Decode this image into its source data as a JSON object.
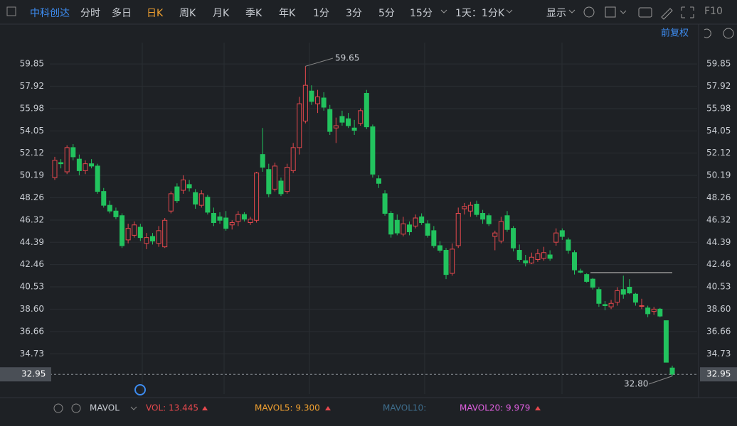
{
  "toolbar": {
    "stock": "中科创达",
    "periods": [
      "分时",
      "多日",
      "日K",
      "周K",
      "月K",
      "季K",
      "年K",
      "1分",
      "3分",
      "5分",
      "15分"
    ],
    "range": "1天：1分K",
    "display": "显示",
    "f10": "F10",
    "adjust": "前复权"
  },
  "indicator": {
    "name": "MAVOL",
    "vol": "VOL: 13.445",
    "mavol5": "MAVOL5: 9.300",
    "mavol10": "MAVOL10:",
    "mavol20": "MAVOL20: 9.979"
  },
  "chart_data": {
    "type": "candlestick",
    "up_color": "#e5484d",
    "down_color": "#22c35e",
    "grid": true,
    "ylim": [
      31.24,
      61.7
    ],
    "yticks": [
      59.85,
      57.92,
      55.98,
      54.05,
      52.12,
      50.19,
      48.26,
      46.32,
      44.39,
      42.46,
      40.53,
      {
        "value": 38.6,
        "label": "38.60"
      },
      36.66,
      34.73
    ],
    "last_price": 32.95,
    "high_annotation": 59.65,
    "low_annotation": {
      "value": 32.8,
      "label": "32.80"
    },
    "open": [
      50.0,
      51.3,
      50.5,
      52.6,
      51.6,
      50.6,
      51.2,
      51.0,
      48.8,
      47.6,
      47.1,
      46.7,
      44.6,
      45.0,
      45.7,
      44.3,
      44.9,
      44.3,
      44.0,
      47.1,
      49.2,
      48.9,
      49.4,
      48.7,
      47.6,
      48.3,
      46.9,
      46.6,
      46.5,
      45.9,
      46.2,
      46.8,
      46.1,
      46.3,
      52.0,
      50.7,
      49.0,
      49.7,
      48.8,
      50.6,
      52.6,
      54.9,
      57.5,
      56.4,
      56.9,
      55.9,
      54.3,
      55.3,
      55.1,
      54.3,
      54.7,
      57.3,
      54.4,
      49.9,
      48.6,
      46.9,
      46.3,
      45.1,
      45.9,
      45.8,
      46.6,
      46.0,
      45.4,
      44.1,
      43.7,
      41.7,
      44.1,
      47.3,
      47.1,
      47.7,
      46.9,
      46.7,
      44.9,
      44.5,
      46.7,
      45.6,
      43.7,
      42.8,
      42.6,
      42.9,
      43.0,
      43.3,
      44.4,
      45.4,
      44.6,
      43.5,
      41.9,
      41.6,
      41.2,
      40.3,
      39.0,
      38.8,
      39.2,
      40.3,
      40.5,
      39.9,
      38.9,
      38.7,
      38.4,
      38.6,
      37.6,
      33.5
    ],
    "high": [
      51.8,
      51.6,
      52.8,
      52.9,
      52.0,
      51.5,
      51.6,
      51.2,
      49.1,
      48.0,
      47.4,
      46.9,
      46.0,
      46.2,
      46.0,
      45.2,
      45.2,
      45.8,
      46.5,
      48.8,
      49.5,
      50.2,
      49.8,
      49.0,
      48.9,
      48.5,
      47.4,
      47.0,
      47.1,
      46.3,
      47.1,
      47.0,
      46.6,
      50.5,
      54.3,
      51.2,
      51.3,
      50.0,
      51.2,
      53.0,
      57.0,
      59.65,
      58.0,
      57.6,
      57.4,
      56.3,
      55.2,
      55.8,
      55.6,
      55.0,
      56.0,
      57.6,
      54.6,
      50.2,
      48.9,
      47.1,
      46.8,
      46.6,
      46.2,
      46.8,
      46.9,
      46.3,
      45.8,
      44.5,
      43.9,
      44.3,
      47.4,
      47.8,
      47.9,
      48.0,
      47.2,
      46.9,
      45.4,
      46.6,
      47.1,
      45.8,
      44.2,
      43.3,
      43.5,
      43.8,
      44.0,
      43.7,
      45.6,
      45.6,
      44.8,
      43.7,
      42.1,
      41.7,
      41.3,
      40.5,
      39.3,
      39.4,
      40.5,
      41.5,
      41.2,
      40.0,
      39.5,
      38.9,
      38.8,
      38.7,
      37.6,
      33.7
    ],
    "low": [
      49.8,
      50.8,
      50.3,
      51.5,
      50.2,
      50.3,
      50.8,
      48.6,
      47.4,
      46.9,
      46.4,
      43.9,
      44.3,
      44.8,
      44.5,
      43.8,
      44.2,
      44.0,
      43.9,
      46.9,
      47.8,
      48.6,
      48.8,
      47.3,
      47.4,
      46.8,
      45.8,
      46.0,
      45.4,
      45.5,
      45.8,
      46.2,
      45.9,
      46.1,
      50.5,
      48.3,
      48.8,
      48.4,
      48.6,
      50.4,
      52.0,
      54.7,
      56.3,
      55.6,
      55.8,
      53.7,
      53.0,
      54.5,
      54.3,
      53.7,
      54.5,
      54.2,
      50.0,
      49.1,
      46.7,
      44.8,
      45.0,
      44.9,
      45.0,
      45.6,
      45.9,
      44.8,
      43.9,
      43.5,
      41.2,
      41.5,
      43.9,
      46.8,
      46.6,
      46.6,
      46.0,
      45.8,
      43.7,
      44.3,
      45.3,
      43.6,
      42.7,
      42.3,
      42.5,
      42.7,
      42.8,
      42.8,
      44.1,
      44.6,
      43.4,
      41.6,
      41.7,
      40.9,
      40.3,
      38.8,
      38.5,
      38.6,
      38.9,
      39.5,
      39.9,
      38.9,
      38.6,
      37.9,
      38.1,
      37.9,
      34.0,
      32.8
    ],
    "close": [
      51.5,
      51.2,
      52.6,
      51.8,
      50.6,
      51.2,
      51.0,
      48.8,
      47.6,
      47.1,
      46.6,
      44.1,
      45.6,
      45.9,
      44.8,
      44.8,
      44.5,
      45.4,
      46.3,
      48.6,
      48.0,
      49.8,
      49.1,
      47.7,
      48.6,
      47.0,
      46.1,
      46.3,
      45.6,
      46.1,
      46.8,
      46.4,
      46.4,
      50.4,
      50.9,
      48.6,
      51.0,
      48.6,
      50.9,
      52.6,
      56.4,
      58.0,
      56.6,
      57.0,
      56.1,
      54.0,
      54.5,
      54.8,
      54.5,
      54.1,
      55.8,
      54.4,
      50.3,
      49.5,
      46.9,
      45.1,
      45.2,
      46.0,
      45.3,
      46.5,
      46.1,
      45.0,
      44.1,
      43.7,
      41.6,
      43.8,
      46.9,
      47.5,
      47.6,
      46.8,
      46.4,
      46.0,
      45.2,
      46.2,
      45.5,
      43.9,
      42.9,
      42.6,
      43.1,
      43.4,
      43.5,
      43.0,
      45.2,
      44.9,
      43.7,
      42.0,
      41.8,
      41.0,
      40.5,
      39.1,
      38.9,
      39.1,
      40.2,
      39.9,
      40.0,
      39.2,
      38.9,
      38.2,
      38.6,
      38.0,
      34.0,
      32.95
    ]
  }
}
